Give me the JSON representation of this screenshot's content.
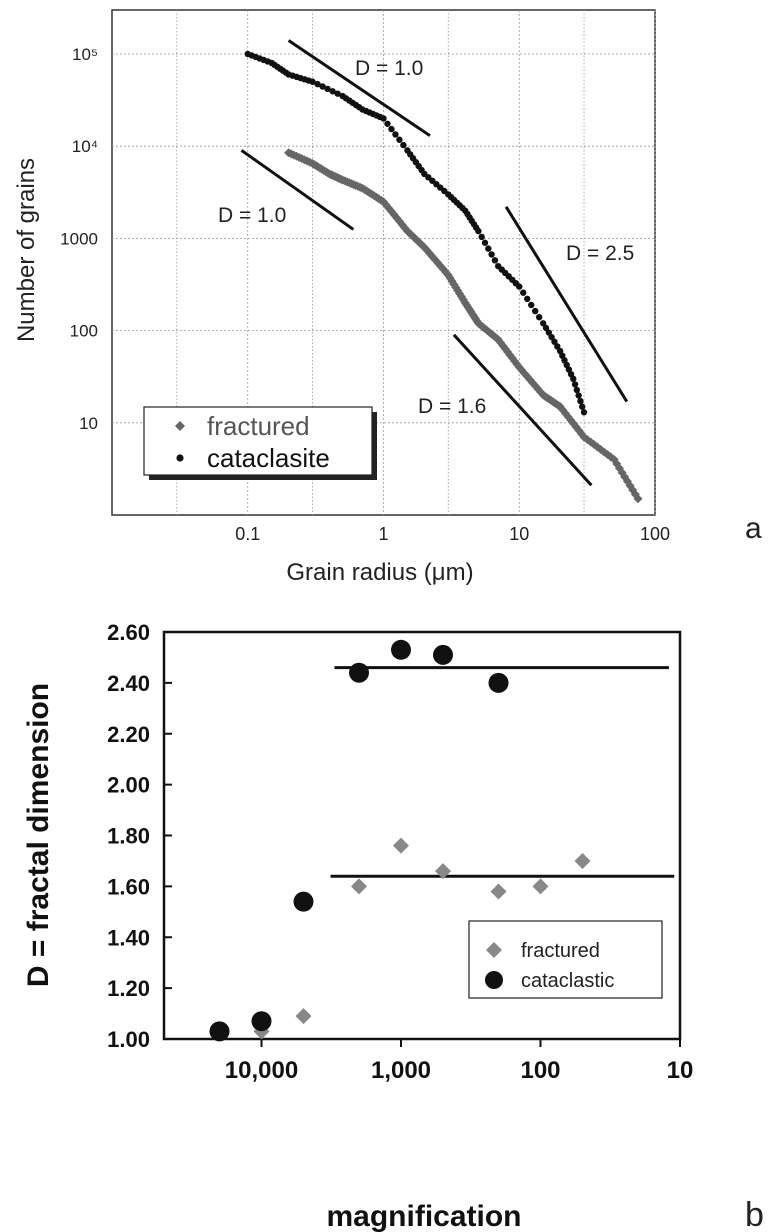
{
  "chart_data": [
    {
      "panel_label": "a",
      "type": "scatter",
      "xlabel": "Grain radius (μm)",
      "ylabel": "Number of grains",
      "x_scale": "log",
      "y_scale": "log",
      "xlim": [
        0.01,
        100
      ],
      "ylim": [
        1,
        300000
      ],
      "xticks": [
        0.1,
        1,
        10,
        100
      ],
      "xtick_labels": [
        "0.1",
        "1",
        "10",
        "100"
      ],
      "yticks": [
        10,
        100,
        1000,
        10000,
        100000
      ],
      "ytick_labels": [
        "10",
        "100",
        "1000",
        "10⁴",
        "10⁵"
      ],
      "grid": true,
      "legend_position": "bottom-left",
      "series": [
        {
          "name": "fractured",
          "marker": "diamond",
          "color": "#666666",
          "x": [
            0.2,
            0.3,
            0.4,
            0.5,
            0.7,
            1.0,
            1.5,
            2.0,
            3.0,
            4.0,
            5.0,
            7.0,
            10.0,
            15.0,
            20.0,
            30.0,
            50.0,
            75.0
          ],
          "y": [
            8500,
            6500,
            5000,
            4300,
            3500,
            2500,
            1200,
            800,
            400,
            200,
            120,
            80,
            40,
            20,
            15,
            7,
            4,
            1.5
          ]
        },
        {
          "name": "cataclasite",
          "marker": "circle",
          "color": "#111111",
          "x": [
            0.1,
            0.15,
            0.2,
            0.3,
            0.5,
            0.7,
            1.0,
            1.5,
            2.0,
            3.0,
            4.0,
            5.0,
            7.0,
            10.0,
            15.0,
            20.0,
            25.0,
            30.0
          ],
          "y": [
            100000,
            80000,
            60000,
            50000,
            35000,
            25000,
            20000,
            9000,
            5000,
            3000,
            2000,
            1200,
            500,
            300,
            120,
            60,
            30,
            13
          ]
        }
      ],
      "reference_lines": [
        {
          "label": "D = 1.0",
          "x": [
            0.2,
            2.2
          ],
          "y": [
            140000,
            13000
          ]
        },
        {
          "label": "D = 1.0",
          "x": [
            0.09,
            0.6
          ],
          "y": [
            9000,
            1250
          ]
        },
        {
          "label": "D = 2.5",
          "x": [
            8,
            62
          ],
          "y": [
            2200,
            17
          ]
        },
        {
          "label": "D = 1.6",
          "x": [
            3.3,
            34
          ],
          "y": [
            90,
            2.1
          ]
        }
      ]
    },
    {
      "panel_label": "b",
      "type": "scatter",
      "xlabel": "magnification",
      "ylabel": "D = fractal dimension",
      "x_scale": "log",
      "x_reversed": true,
      "xlim": [
        50000,
        10
      ],
      "ylim": [
        1.0,
        2.6
      ],
      "xticks": [
        10000,
        1000,
        100,
        10
      ],
      "xtick_labels": [
        "10,000",
        "1,000",
        "100",
        "10"
      ],
      "yticks": [
        1.0,
        1.2,
        1.4,
        1.6,
        1.8,
        2.0,
        2.2,
        2.4,
        2.6
      ],
      "ytick_labels": [
        "1.00",
        "1.20",
        "1.40",
        "1.60",
        "1.80",
        "2.00",
        "2.20",
        "2.40",
        "2.60"
      ],
      "legend_position": "bottom-right",
      "series": [
        {
          "name": "fractured",
          "marker": "diamond",
          "color": "#888888",
          "x": [
            10000,
            5000,
            2000,
            1000,
            500,
            200,
            100,
            50
          ],
          "y": [
            1.03,
            1.09,
            1.6,
            1.76,
            1.66,
            1.58,
            1.6,
            1.7
          ]
        },
        {
          "name": "cataclastic",
          "marker": "circle",
          "color": "#111111",
          "x": [
            20000,
            10000,
            5000,
            2000,
            1000,
            500,
            200
          ],
          "y": [
            1.03,
            1.07,
            1.54,
            2.44,
            2.53,
            2.51,
            2.4
          ]
        }
      ],
      "reference_lines": [
        {
          "x": [
            3000,
            12
          ],
          "y": [
            2.46,
            2.46
          ]
        },
        {
          "x": [
            3200,
            11
          ],
          "y": [
            1.64,
            1.64
          ]
        }
      ]
    }
  ]
}
